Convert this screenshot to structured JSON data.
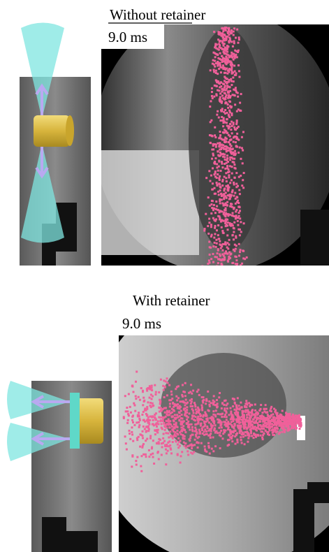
{
  "panels": [
    {
      "title": "Without retainer",
      "time": "9.0 ms"
    },
    {
      "title": "With retainer",
      "time": "9.0 ms"
    }
  ]
}
